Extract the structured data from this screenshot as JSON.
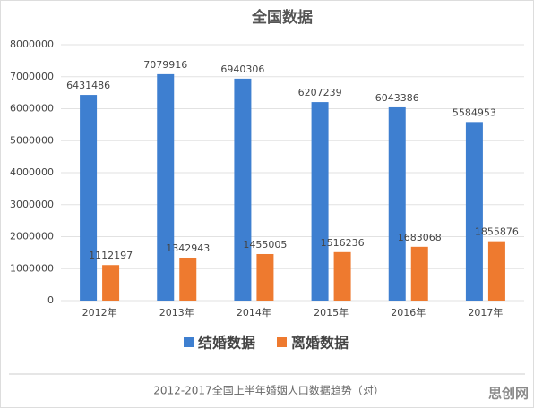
{
  "chart_data": {
    "type": "bar",
    "title": "全国数据",
    "categories": [
      "2012年",
      "2013年",
      "2014年",
      "2015年",
      "2016年",
      "2017年"
    ],
    "series": [
      {
        "name": "结婚数据",
        "color": "#3e7fd0",
        "values": [
          6431486,
          7079916,
          6940306,
          6207239,
          6043386,
          5584953
        ]
      },
      {
        "name": "离婚数据",
        "color": "#ee7a2f",
        "values": [
          1112197,
          1342943,
          1455005,
          1516236,
          1683068,
          1855876
        ]
      }
    ],
    "ylim": [
      0,
      8000000
    ],
    "yticks": [
      0,
      1000000,
      2000000,
      3000000,
      4000000,
      5000000,
      6000000,
      7000000,
      8000000
    ],
    "grid": true,
    "legend": "bottom"
  },
  "caption": "2012-2017全国上半年婚姻人口数据趋势（对）",
  "watermark": "思创网"
}
